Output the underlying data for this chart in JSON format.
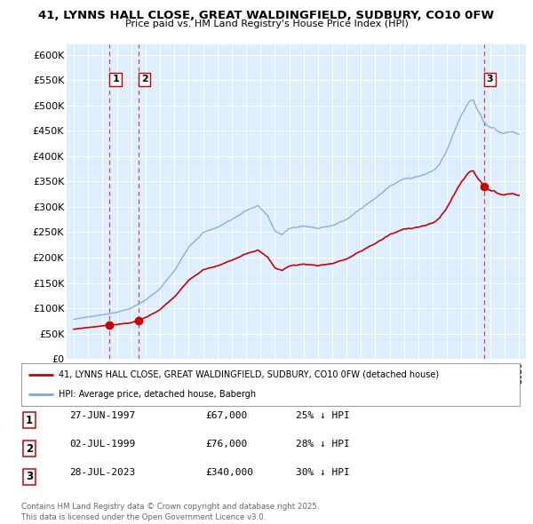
{
  "title_line1": "41, LYNNS HALL CLOSE, GREAT WALDINGFIELD, SUDBURY, CO10 0FW",
  "title_line2": "Price paid vs. HM Land Registry's House Price Index (HPI)",
  "ylabel_ticks": [
    "£0",
    "£50K",
    "£100K",
    "£150K",
    "£200K",
    "£250K",
    "£300K",
    "£350K",
    "£400K",
    "£450K",
    "£500K",
    "£550K",
    "£600K"
  ],
  "ytick_values": [
    0,
    50000,
    100000,
    150000,
    200000,
    250000,
    300000,
    350000,
    400000,
    450000,
    500000,
    550000,
    600000
  ],
  "xlim": [
    1994.5,
    2026.5
  ],
  "ylim": [
    0,
    620000
  ],
  "sale_dates": [
    1997.49,
    1999.5,
    2023.57
  ],
  "sale_prices": [
    67000,
    76000,
    340000
  ],
  "sale_labels": [
    "1",
    "2",
    "3"
  ],
  "legend_line1": "41, LYNNS HALL CLOSE, GREAT WALDINGFIELD, SUDBURY, CO10 0FW (detached house)",
  "legend_line2": "HPI: Average price, detached house, Babergh",
  "table_data": [
    [
      "1",
      "27-JUN-1997",
      "£67,000",
      "25% ↓ HPI"
    ],
    [
      "2",
      "02-JUL-1999",
      "£76,000",
      "28% ↓ HPI"
    ],
    [
      "3",
      "28-JUL-2023",
      "£340,000",
      "30% ↓ HPI"
    ]
  ],
  "footnote": "Contains HM Land Registry data © Crown copyright and database right 2025.\nThis data is licensed under the Open Government Licence v3.0.",
  "red_color": "#cc0000",
  "blue_color": "#7aaadd",
  "bg_color": "#ddeeff",
  "grid_color": "#ffffff"
}
